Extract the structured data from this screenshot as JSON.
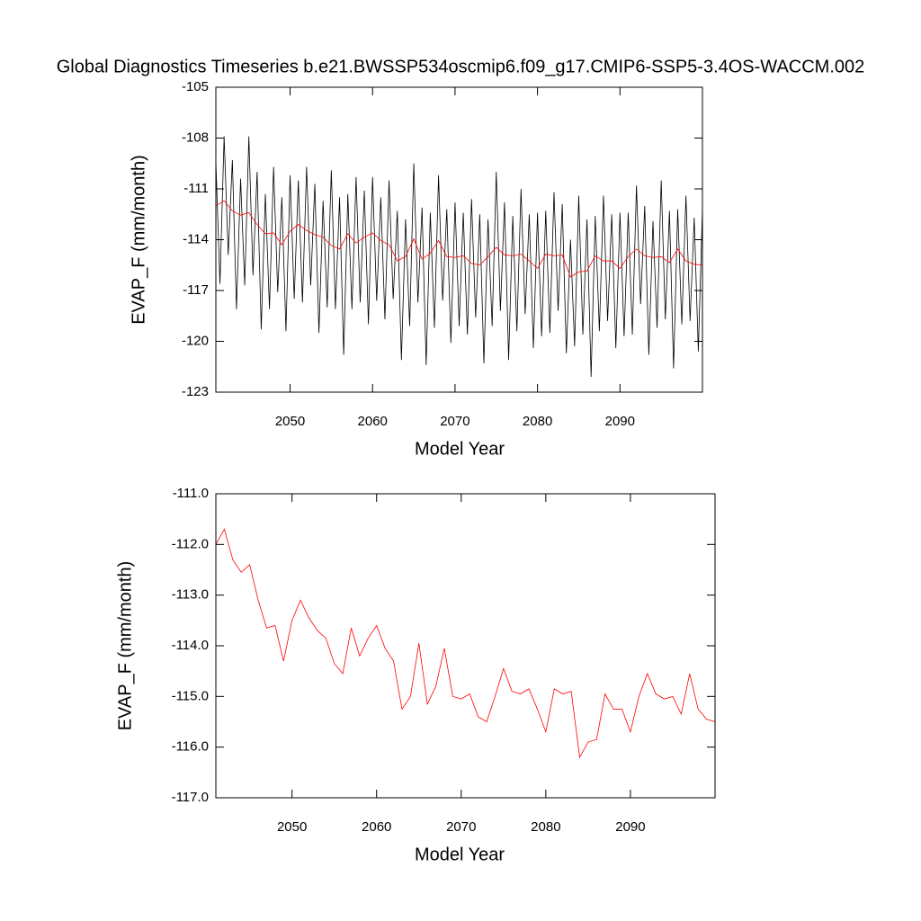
{
  "chart_data": [
    {
      "type": "line",
      "title": "Global Diagnostics Timeseries b.e21.BWSSP534oscmip6.f09_g17.CMIP6-SSP5-3.4OS-WACCM.002",
      "xlabel": "Model Year",
      "ylabel": "EVAP_F (mm/month)",
      "xlim": [
        2041,
        2100
      ],
      "ylim": [
        -123,
        -105
      ],
      "xticks": [
        2050,
        2060,
        2070,
        2080,
        2090
      ],
      "yticks": [
        -123,
        -120,
        -117,
        -114,
        -111,
        -108,
        -105
      ],
      "series": [
        {
          "color": "#000000",
          "x": [
            2041,
            2041.5,
            2042,
            2042.5,
            2043,
            2043.5,
            2044,
            2044.5,
            2045,
            2045.5,
            2046,
            2046.5,
            2047,
            2047.5,
            2048,
            2048.5,
            2049,
            2049.5,
            2050,
            2050.5,
            2051,
            2051.5,
            2052,
            2052.5,
            2053,
            2053.5,
            2054,
            2054.5,
            2055,
            2055.5,
            2056,
            2056.5,
            2057,
            2057.5,
            2058,
            2058.5,
            2059,
            2059.5,
            2060,
            2060.5,
            2061,
            2061.5,
            2062,
            2062.5,
            2063,
            2063.5,
            2064,
            2064.5,
            2065,
            2065.5,
            2066,
            2066.5,
            2067,
            2067.5,
            2068,
            2068.5,
            2069,
            2069.5,
            2070,
            2070.5,
            2071,
            2071.5,
            2072,
            2072.5,
            2073,
            2073.5,
            2074,
            2074.5,
            2075,
            2075.5,
            2076,
            2076.5,
            2077,
            2077.5,
            2078,
            2078.5,
            2079,
            2079.5,
            2080,
            2080.5,
            2081,
            2081.5,
            2082,
            2082.5,
            2083,
            2083.5,
            2084,
            2084.5,
            2085,
            2085.5,
            2086,
            2086.5,
            2087,
            2087.5,
            2088,
            2088.5,
            2089,
            2089.5,
            2090,
            2090.5,
            2091,
            2091.5,
            2092,
            2092.5,
            2093,
            2093.5,
            2094,
            2094.5,
            2095,
            2095.5,
            2096,
            2096.5,
            2097,
            2097.5,
            2098,
            2098.5,
            2099,
            2099.5,
            2100
          ],
          "values": [
            -109.4,
            -116.6,
            -107.9,
            -114.9,
            -109.3,
            -118.1,
            -110.4,
            -116.7,
            -107.9,
            -116.1,
            -110.0,
            -119.3,
            -111.3,
            -118.1,
            -109.7,
            -117.1,
            -111.5,
            -119.4,
            -110.2,
            -117.5,
            -110.5,
            -117.7,
            -109.7,
            -116.7,
            -110.7,
            -119.5,
            -111.7,
            -118.0,
            -109.9,
            -118.1,
            -111.5,
            -120.8,
            -111.3,
            -118.1,
            -110.3,
            -117.7,
            -111.1,
            -119.0,
            -110.3,
            -117.6,
            -111.5,
            -118.7,
            -110.5,
            -117.5,
            -112.3,
            -121.1,
            -112.8,
            -119.1,
            -109.5,
            -117.7,
            -112.1,
            -121.4,
            -112.4,
            -119.2,
            -110.2,
            -117.6,
            -112.2,
            -120.1,
            -111.8,
            -119.1,
            -112.4,
            -119.6,
            -111.6,
            -118.6,
            -112.5,
            -121.3,
            -112.8,
            -119.1,
            -110.0,
            -118.2,
            -111.8,
            -121.1,
            -112.6,
            -119.4,
            -111.0,
            -118.4,
            -112.5,
            -120.4,
            -112.4,
            -119.7,
            -112.3,
            -119.5,
            -111.2,
            -118.2,
            -111.9,
            -120.7,
            -114.0,
            -120.3,
            -111.4,
            -119.6,
            -112.8,
            -122.1,
            -112.6,
            -119.4,
            -111.4,
            -118.8,
            -112.5,
            -120.4,
            -112.4,
            -119.7,
            -112.4,
            -119.6,
            -110.8,
            -117.8,
            -112.0,
            -120.8,
            -112.9,
            -119.2,
            -110.5,
            -118.7,
            -112.3,
            -121.6,
            -112.2,
            -119.0,
            -111.4,
            -118.8,
            -112.7,
            -120.6,
            -112.2
          ]
        },
        {
          "color": "#ff0000",
          "x": [
            2041,
            2042,
            2043,
            2044,
            2045,
            2046,
            2047,
            2048,
            2049,
            2050,
            2051,
            2052,
            2053,
            2054,
            2055,
            2056,
            2057,
            2058,
            2059,
            2060,
            2061,
            2062,
            2063,
            2064,
            2065,
            2066,
            2067,
            2068,
            2069,
            2070,
            2071,
            2072,
            2073,
            2074,
            2075,
            2076,
            2077,
            2078,
            2079,
            2080,
            2081,
            2082,
            2083,
            2084,
            2085,
            2086,
            2087,
            2088,
            2089,
            2090,
            2091,
            2092,
            2093,
            2094,
            2095,
            2096,
            2097,
            2098,
            2099,
            2100
          ],
          "values": [
            -112.0,
            -111.7,
            -112.3,
            -112.55,
            -112.4,
            -113.1,
            -113.65,
            -113.6,
            -114.3,
            -113.5,
            -113.1,
            -113.45,
            -113.7,
            -113.85,
            -114.35,
            -114.55,
            -113.65,
            -114.2,
            -113.85,
            -113.6,
            -114.05,
            -114.3,
            -115.25,
            -115.0,
            -113.95,
            -115.15,
            -114.8,
            -114.05,
            -115.0,
            -115.05,
            -114.95,
            -115.4,
            -115.5,
            -115.0,
            -114.45,
            -114.9,
            -114.95,
            -114.85,
            -115.25,
            -115.7,
            -114.85,
            -114.95,
            -114.9,
            -116.2,
            -115.9,
            -115.85,
            -114.95,
            -115.25,
            -115.25,
            -115.7,
            -115.0,
            -114.55,
            -114.95,
            -115.05,
            -115.0,
            -115.35,
            -114.55,
            -115.25,
            -115.45,
            -115.5
          ]
        }
      ]
    },
    {
      "type": "line",
      "xlabel": "Model Year",
      "ylabel": "EVAP_F (mm/month)",
      "xlim": [
        2041,
        2100
      ],
      "ylim": [
        -117,
        -111
      ],
      "xticks": [
        2050,
        2060,
        2070,
        2080,
        2090
      ],
      "yticks": [
        {
          "value": -117,
          "label": "-117.0"
        },
        {
          "value": -116,
          "label": "-116.0"
        },
        {
          "value": -115,
          "label": "-115.0"
        },
        {
          "value": -114,
          "label": "-114.0"
        },
        {
          "value": -113,
          "label": "-113.0"
        },
        {
          "value": -112,
          "label": "-112.0"
        },
        {
          "value": -111,
          "label": "-111.0"
        }
      ],
      "series": [
        {
          "color": "#ff0000",
          "x": [
            2041,
            2042,
            2043,
            2044,
            2045,
            2046,
            2047,
            2048,
            2049,
            2050,
            2051,
            2052,
            2053,
            2054,
            2055,
            2056,
            2057,
            2058,
            2059,
            2060,
            2061,
            2062,
            2063,
            2064,
            2065,
            2066,
            2067,
            2068,
            2069,
            2070,
            2071,
            2072,
            2073,
            2074,
            2075,
            2076,
            2077,
            2078,
            2079,
            2080,
            2081,
            2082,
            2083,
            2084,
            2085,
            2086,
            2087,
            2088,
            2089,
            2090,
            2091,
            2092,
            2093,
            2094,
            2095,
            2096,
            2097,
            2098,
            2099,
            2100
          ],
          "values": [
            -112.0,
            -111.7,
            -112.3,
            -112.55,
            -112.4,
            -113.1,
            -113.65,
            -113.6,
            -114.3,
            -113.5,
            -113.1,
            -113.45,
            -113.7,
            -113.85,
            -114.35,
            -114.55,
            -113.65,
            -114.2,
            -113.85,
            -113.6,
            -114.05,
            -114.3,
            -115.25,
            -115.0,
            -113.95,
            -115.15,
            -114.8,
            -114.05,
            -115.0,
            -115.05,
            -114.95,
            -115.4,
            -115.5,
            -115.0,
            -114.45,
            -114.9,
            -114.95,
            -114.85,
            -115.25,
            -115.7,
            -114.85,
            -114.95,
            -114.9,
            -116.2,
            -115.9,
            -115.85,
            -114.95,
            -115.25,
            -115.25,
            -115.7,
            -115.0,
            -114.55,
            -114.95,
            -115.05,
            -115.0,
            -115.35,
            -114.55,
            -115.25,
            -115.45,
            -115.5
          ]
        }
      ]
    }
  ]
}
